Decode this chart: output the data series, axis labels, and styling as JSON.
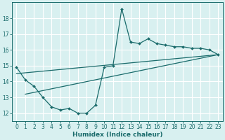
{
  "xlabel": "Humidex (Indice chaleur)",
  "bg_color": "#d8f0f0",
  "grid_color": "#ffffff",
  "line_color": "#1a6b6b",
  "xlim": [
    -0.5,
    23.5
  ],
  "ylim": [
    11.5,
    19.0
  ],
  "yticks": [
    12,
    13,
    14,
    15,
    16,
    17,
    18
  ],
  "xticks": [
    0,
    1,
    2,
    3,
    4,
    5,
    6,
    7,
    8,
    9,
    10,
    11,
    12,
    13,
    14,
    15,
    16,
    17,
    18,
    19,
    20,
    21,
    22,
    23
  ],
  "series1_x": [
    0,
    1,
    2,
    3,
    4,
    5,
    6,
    7,
    8,
    9,
    10,
    11,
    12,
    13,
    14,
    15,
    16,
    17,
    18,
    19,
    20,
    21,
    22,
    23
  ],
  "series1_y": [
    14.9,
    14.1,
    13.7,
    13.0,
    12.4,
    12.2,
    12.3,
    12.0,
    12.0,
    12.5,
    14.9,
    15.0,
    18.6,
    16.5,
    16.4,
    16.7,
    16.4,
    16.3,
    16.2,
    16.2,
    16.1,
    16.1,
    16.0,
    15.7
  ],
  "series2_x": [
    0,
    23
  ],
  "series2_y": [
    14.5,
    15.7
  ],
  "series3_x": [
    1,
    23
  ],
  "series3_y": [
    13.2,
    15.7
  ],
  "tick_fontsize": 5.5,
  "xlabel_fontsize": 6.5
}
